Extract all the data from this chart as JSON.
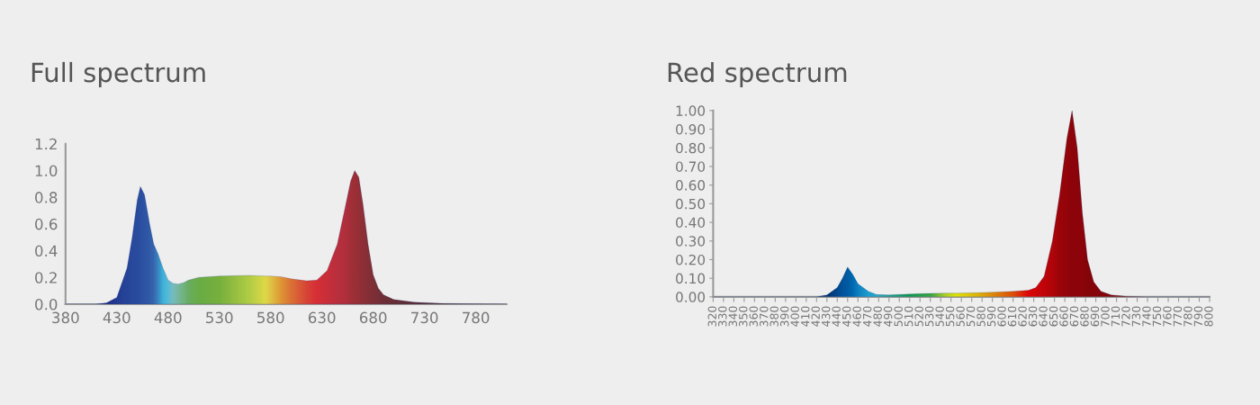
{
  "chart_data": [
    {
      "type": "area",
      "title": "Full spectrum",
      "xlim": [
        380,
        810
      ],
      "xticks": [
        380,
        430,
        480,
        530,
        580,
        630,
        680,
        730,
        780
      ],
      "ylim": [
        0,
        1.2
      ],
      "yticks": [
        {
          "value": 0,
          "label": "0.0"
        },
        {
          "value": 0.2,
          "label": "0.2"
        },
        {
          "value": 0.4,
          "label": "0.4"
        },
        {
          "value": 0.6,
          "label": "0.6"
        },
        {
          "value": 0.8,
          "label": "0.8"
        },
        {
          "value": 1.0,
          "label": "1.0"
        },
        {
          "value": 1.2,
          "label": "1.2"
        }
      ],
      "grid": false,
      "legend": false,
      "series": [
        {
          "x": [
            380,
            410,
            420,
            430,
            440,
            445,
            450,
            453,
            457,
            462,
            466,
            470,
            475,
            480,
            485,
            490,
            495,
            500,
            510,
            530,
            560,
            575,
            580,
            590,
            600,
            615,
            625,
            635,
            645,
            652,
            658,
            662,
            666,
            670,
            675,
            680,
            685,
            690,
            700,
            720,
            750,
            780,
            810
          ],
          "values": [
            0,
            0,
            0.01,
            0.05,
            0.27,
            0.5,
            0.78,
            0.88,
            0.82,
            0.6,
            0.45,
            0.38,
            0.27,
            0.18,
            0.155,
            0.15,
            0.16,
            0.18,
            0.2,
            0.21,
            0.215,
            0.21,
            0.21,
            0.205,
            0.19,
            0.175,
            0.18,
            0.25,
            0.45,
            0.7,
            0.92,
            1.0,
            0.95,
            0.75,
            0.45,
            0.22,
            0.12,
            0.07,
            0.035,
            0.015,
            0.005,
            0.002,
            0
          ],
          "colors": [
            "#1a2a80",
            "#1a2a80",
            "#1e3088",
            "#243f94",
            "#28489c",
            "#2a4ca0",
            "#2c50a0",
            "#2e54a4",
            "#3058a8",
            "#3460ac",
            "#3a6cb5",
            "#3c90c8",
            "#40c0e0",
            "#60c8e0",
            "#80c8c0",
            "#80c4a0",
            "#78c080",
            "#70b860",
            "#70b840",
            "#80bc38",
            "#c0dc40",
            "#f0e840",
            "#f0d040",
            "#f0a030",
            "#ec7830",
            "#e84830",
            "#e83030",
            "#d83034",
            "#c83038",
            "#c03038",
            "#b03034",
            "#a83030",
            "#a03030",
            "#983030",
            "#903030",
            "#883030",
            "#803030",
            "#783030",
            "#703030",
            "#603030",
            "#583030",
            "#503030",
            "#503030"
          ]
        }
      ]
    },
    {
      "type": "area",
      "title": "Red spectrum",
      "xlim": [
        320,
        800
      ],
      "xticks": [
        320,
        330,
        340,
        350,
        360,
        370,
        380,
        390,
        400,
        410,
        420,
        430,
        440,
        450,
        460,
        470,
        480,
        490,
        500,
        510,
        520,
        530,
        540,
        550,
        560,
        570,
        580,
        590,
        600,
        610,
        620,
        630,
        640,
        650,
        660,
        670,
        680,
        690,
        700,
        710,
        720,
        730,
        740,
        750,
        760,
        770,
        780,
        790,
        800
      ],
      "ylim": [
        0,
        1.0
      ],
      "yticks": [
        {
          "value": 0,
          "label": "0.00"
        },
        {
          "value": 0.1,
          "label": "0.10"
        },
        {
          "value": 0.2,
          "label": "0.20"
        },
        {
          "value": 0.3,
          "label": "0.30"
        },
        {
          "value": 0.4,
          "label": "0.40"
        },
        {
          "value": 0.5,
          "label": "0.50"
        },
        {
          "value": 0.6,
          "label": "0.60"
        },
        {
          "value": 0.7,
          "label": "0.70"
        },
        {
          "value": 0.8,
          "label": "0.80"
        },
        {
          "value": 0.9,
          "label": "0.90"
        },
        {
          "value": 1.0,
          "label": "1.00"
        }
      ],
      "grid": false,
      "legend": false,
      "series": [
        {
          "x": [
            320,
            420,
            430,
            440,
            445,
            450,
            455,
            460,
            465,
            470,
            478,
            490,
            510,
            530,
            545,
            555,
            575,
            590,
            610,
            625,
            632,
            640,
            648,
            655,
            662,
            667,
            672,
            677,
            682,
            688,
            695,
            705,
            720,
            740,
            800
          ],
          "values": [
            0,
            0,
            0.01,
            0.05,
            0.1,
            0.16,
            0.12,
            0.07,
            0.05,
            0.03,
            0.012,
            0.01,
            0.015,
            0.018,
            0.02,
            0.02,
            0.022,
            0.025,
            0.03,
            0.035,
            0.05,
            0.11,
            0.3,
            0.55,
            0.85,
            1.0,
            0.8,
            0.45,
            0.2,
            0.08,
            0.03,
            0.01,
            0.003,
            0,
            0
          ],
          "colors": [
            "#003070",
            "#003070",
            "#003070",
            "#004a90",
            "#0058a0",
            "#0060a8",
            "#0070b8",
            "#1088c8",
            "#1898d0",
            "#20a8d8",
            "#30b0d0",
            "#20a890",
            "#10a050",
            "#40b040",
            "#c0e020",
            "#f0f000",
            "#f0c000",
            "#f09000",
            "#f05000",
            "#f00000",
            "#e00000",
            "#d00000",
            "#c00000",
            "#a80000",
            "#a00000",
            "#980000",
            "#980000",
            "#980000",
            "#900000",
            "#900000",
            "#900000",
            "#900000",
            "#900000",
            "#900000",
            "#900000"
          ]
        }
      ]
    }
  ]
}
